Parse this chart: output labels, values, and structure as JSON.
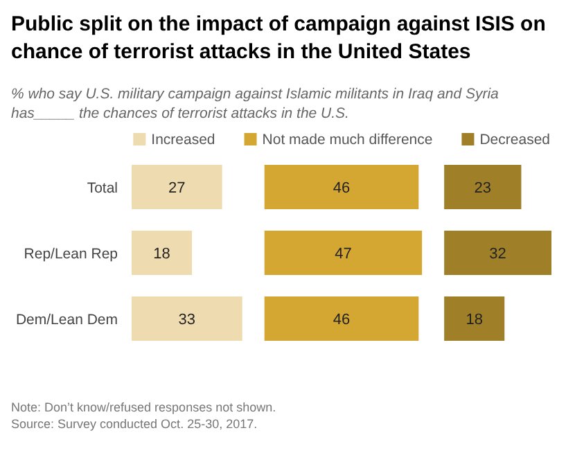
{
  "chart_data": [
    {
      "type": "bar",
      "orientation": "horizontal",
      "title": "Public split on the impact of campaign against ISIS on chance of terrorist attacks in the United States",
      "subtitle": "% who say U.S. military campaign against Islamic militants in Iraq and Syria has_____ the chances of terrorist attacks in the U.S.",
      "categories": [
        "Total",
        "Rep/Lean Rep",
        "Dem/Lean Dem"
      ],
      "series": [
        {
          "name": "Increased",
          "color": "#eedcb0",
          "values": [
            27,
            18,
            33
          ]
        }
      ],
      "data_labels": true,
      "legend": "top",
      "annotations": [
        "Note: Don’t know/refused responses not shown.",
        "Source: Survey conducted Oct. 25-30, 2017."
      ]
    },
    {
      "type": "bar",
      "orientation": "horizontal",
      "categories": [
        null,
        null,
        null
      ],
      "series": [
        {
          "name": "Not made much difference",
          "color": "#d4a733",
          "values": [
            46,
            47,
            46
          ]
        }
      ],
      "data_labels": true,
      "legend": "top"
    },
    {
      "type": "bar",
      "orientation": "horizontal",
      "categories": [
        null,
        null,
        null
      ],
      "series": [
        {
          "name": "Decreased",
          "color": "#9f7f28",
          "values": [
            23,
            32,
            18
          ]
        }
      ],
      "data_labels": true,
      "legend": "top"
    }
  ]
}
